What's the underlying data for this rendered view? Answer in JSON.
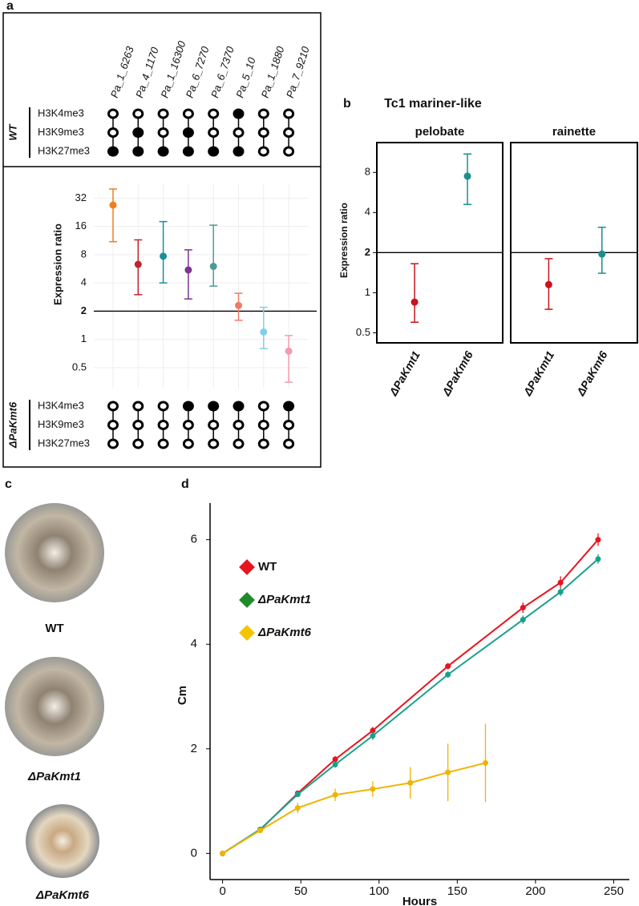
{
  "panel_labels": [
    "a",
    "b",
    "c",
    "d"
  ],
  "photos": {
    "labels": [
      "WT",
      "ΔPaKmt1",
      "ΔPaKmt6"
    ]
  },
  "chart_data": [
    {
      "type": "marks_dotplot",
      "categories": [
        "Pa_1_6263",
        "Pa_4_1170",
        "Pa_1_16300",
        "Pa_6_7270",
        "Pa_6_7370",
        "Pa_5_10",
        "Pa_1_1880",
        "Pa_7_9210"
      ],
      "values": [
        27,
        6.3,
        7.7,
        5.5,
        6,
        2.3,
        1.2,
        0.75
      ],
      "lower": [
        11,
        3,
        4,
        2.7,
        3.7,
        1.6,
        0.8,
        0.35
      ],
      "upper": [
        40,
        11.5,
        18,
        9,
        16.5,
        3.1,
        2.2,
        1.1
      ],
      "colors": [
        "#f07f1b",
        "#c0242b",
        "#1a8f9a",
        "#7b3590",
        "#4f9a96",
        "#f07a66",
        "#7fcfe8",
        "#f49aaa"
      ],
      "y_label": "Expression ratio",
      "log_scale": true,
      "ylim": [
        0.3,
        45
      ],
      "yticks": [
        0.5,
        1,
        2,
        4,
        8,
        16,
        32
      ],
      "reference_line": 2,
      "grid": true,
      "marks_top": {
        "group": "WT",
        "rows": [
          {
            "name": "H3K4me3",
            "filled": [
              false,
              false,
              false,
              false,
              false,
              true,
              false,
              false
            ]
          },
          {
            "name": "H3K9me3",
            "filled": [
              false,
              true,
              false,
              true,
              false,
              false,
              false,
              false
            ]
          },
          {
            "name": "H3K27me3",
            "filled": [
              true,
              true,
              true,
              true,
              true,
              true,
              false,
              false
            ]
          }
        ]
      },
      "marks_bottom": {
        "group": "ΔPaKmt6",
        "rows": [
          {
            "name": "H3K4me3",
            "filled": [
              false,
              false,
              false,
              true,
              true,
              true,
              false,
              true
            ]
          },
          {
            "name": "H3K9me3",
            "filled": [
              false,
              false,
              false,
              false,
              false,
              false,
              false,
              false
            ]
          },
          {
            "name": "H3K27me3",
            "filled": [
              false,
              false,
              false,
              false,
              false,
              false,
              false,
              false
            ]
          }
        ]
      }
    },
    {
      "type": "faceted_dotplot",
      "title": "Tc1 mariner-like",
      "y_label": "Expression ratio",
      "categories": [
        "ΔPaKmt1",
        "ΔPaKmt6"
      ],
      "colors": [
        "#c8141c",
        "#1a8f8f"
      ],
      "facets": [
        {
          "name": "pelobate",
          "values": [
            0.85,
            7.5
          ],
          "lower": [
            0.6,
            4.6
          ],
          "upper": [
            1.65,
            11
          ]
        },
        {
          "name": "rainette",
          "values": [
            1.15,
            1.95
          ],
          "lower": [
            0.75,
            1.4
          ],
          "upper": [
            1.8,
            3.1
          ]
        }
      ],
      "log_scale": true,
      "ylim": [
        0.42,
        13.4
      ],
      "yticks": [
        0.5,
        1,
        2,
        4,
        8
      ],
      "reference_line": 2
    },
    {
      "type": "line",
      "x_label": "Hours",
      "y_label": "Cm",
      "xlim": [
        -8,
        260
      ],
      "xticks": [
        0,
        50,
        100,
        150,
        200,
        250
      ],
      "ylim": [
        -0.5,
        6.7
      ],
      "yticks": [
        0,
        2,
        4,
        6
      ],
      "series": [
        {
          "name": "WT",
          "color": "#e8141e",
          "legend_color": "#e8141e",
          "x": [
            0,
            24,
            48,
            72,
            96,
            144,
            192,
            216,
            240
          ],
          "values": [
            0,
            0.45,
            1.15,
            1.8,
            2.35,
            3.58,
            4.7,
            5.18,
            6.0
          ],
          "errors": [
            0.03,
            0.05,
            0.05,
            0.06,
            0.07,
            0.06,
            0.1,
            0.12,
            0.12
          ]
        },
        {
          "name": "ΔPaKmt1",
          "color": "#1aa08a",
          "legend_color": "#1e8c2a",
          "x": [
            0,
            24,
            48,
            72,
            96,
            144,
            192,
            216,
            240
          ],
          "values": [
            0,
            0.46,
            1.13,
            1.7,
            2.25,
            3.42,
            4.47,
            5.0,
            5.63
          ],
          "errors": [
            0.03,
            0.04,
            0.05,
            0.06,
            0.08,
            0.06,
            0.08,
            0.08,
            0.09
          ]
        },
        {
          "name": "ΔPaKmt6",
          "color": "#f0b400",
          "legend_color": "#f5c400",
          "x": [
            0,
            24,
            48,
            72,
            96,
            120,
            144,
            168
          ],
          "values": [
            0,
            0.44,
            0.87,
            1.12,
            1.23,
            1.35,
            1.55,
            1.73
          ],
          "errors": [
            0,
            0.04,
            0.1,
            0.12,
            0.15,
            0.3,
            0.55,
            0.75
          ]
        }
      ]
    }
  ]
}
